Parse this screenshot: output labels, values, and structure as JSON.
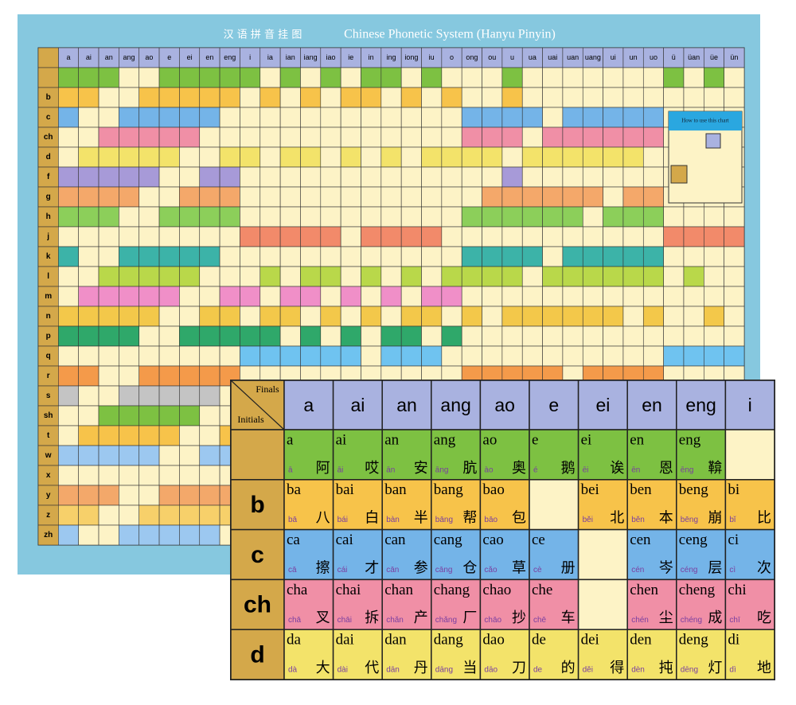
{
  "poster": {
    "title_cn": "汉 语 拼 音 挂 图",
    "title_en": "Chinese Phonetic System (Hanyu Pinyin)",
    "finals": [
      "a",
      "ai",
      "an",
      "ang",
      "ao",
      "e",
      "ei",
      "en",
      "eng",
      "i",
      "ia",
      "ian",
      "iang",
      "iao",
      "ie",
      "in",
      "ing",
      "iong",
      "iu",
      "o",
      "ong",
      "ou",
      "u",
      "ua",
      "uai",
      "uan",
      "uang",
      "ui",
      "un",
      "uo",
      "ü",
      "üan",
      "üe",
      "ün"
    ],
    "initials": [
      "b",
      "c",
      "ch",
      "d",
      "f",
      "g",
      "h",
      "j",
      "k",
      "l",
      "m",
      "n",
      "p",
      "q",
      "r",
      "s",
      "sh",
      "t",
      "w",
      "x",
      "y",
      "z",
      "zh"
    ],
    "guide_title": "How to use this chart"
  },
  "inset": {
    "corner_finals": "Finals",
    "corner_initials": "Initials",
    "finals": [
      "a",
      "ai",
      "an",
      "ang",
      "ao",
      "e",
      "ei",
      "en",
      "eng",
      "i"
    ],
    "rows": [
      {
        "cells": [
          {
            "syllable": "a",
            "tone": "ā",
            "hanzi": "阿"
          },
          {
            "syllable": "ai",
            "tone": "āi",
            "hanzi": "哎"
          },
          {
            "syllable": "an",
            "tone": "ān",
            "hanzi": "安"
          },
          {
            "syllable": "ang",
            "tone": "āng",
            "hanzi": "肮"
          },
          {
            "syllable": "ao",
            "tone": "ào",
            "hanzi": "奥"
          },
          {
            "syllable": "e",
            "tone": "é",
            "hanzi": "鹅"
          },
          {
            "syllable": "ei",
            "tone": "ēi",
            "hanzi": "诶"
          },
          {
            "syllable": "en",
            "tone": "ēn",
            "hanzi": "恩"
          },
          {
            "syllable": "eng",
            "tone": "ēng",
            "hanzi": "鞥"
          },
          null
        ]
      },
      {
        "initial": "b",
        "cells": [
          {
            "syllable": "ba",
            "tone": "bā",
            "hanzi": "八"
          },
          {
            "syllable": "bai",
            "tone": "bái",
            "hanzi": "白"
          },
          {
            "syllable": "ban",
            "tone": "bàn",
            "hanzi": "半"
          },
          {
            "syllable": "bang",
            "tone": "bāng",
            "hanzi": "帮"
          },
          {
            "syllable": "bao",
            "tone": "bāo",
            "hanzi": "包"
          },
          null,
          {
            "syllable": "bei",
            "tone": "běi",
            "hanzi": "北"
          },
          {
            "syllable": "ben",
            "tone": "běn",
            "hanzi": "本"
          },
          {
            "syllable": "beng",
            "tone": "bēng",
            "hanzi": "崩"
          },
          {
            "syllable": "bi",
            "tone": "bǐ",
            "hanzi": "比"
          }
        ]
      },
      {
        "initial": "c",
        "cells": [
          {
            "syllable": "ca",
            "tone": "cā",
            "hanzi": "擦"
          },
          {
            "syllable": "cai",
            "tone": "cái",
            "hanzi": "才"
          },
          {
            "syllable": "can",
            "tone": "cān",
            "hanzi": "参"
          },
          {
            "syllable": "cang",
            "tone": "cāng",
            "hanzi": "仓"
          },
          {
            "syllable": "cao",
            "tone": "cǎo",
            "hanzi": "草"
          },
          {
            "syllable": "ce",
            "tone": "cè",
            "hanzi": "册"
          },
          null,
          {
            "syllable": "cen",
            "tone": "cén",
            "hanzi": "岑"
          },
          {
            "syllable": "ceng",
            "tone": "céng",
            "hanzi": "层"
          },
          {
            "syllable": "ci",
            "tone": "cì",
            "hanzi": "次"
          }
        ]
      },
      {
        "initial": "ch",
        "cells": [
          {
            "syllable": "cha",
            "tone": "chā",
            "hanzi": "叉"
          },
          {
            "syllable": "chai",
            "tone": "chāi",
            "hanzi": "拆"
          },
          {
            "syllable": "chan",
            "tone": "chǎn",
            "hanzi": "产"
          },
          {
            "syllable": "chang",
            "tone": "chǎng",
            "hanzi": "厂"
          },
          {
            "syllable": "chao",
            "tone": "chāo",
            "hanzi": "抄"
          },
          {
            "syllable": "che",
            "tone": "chē",
            "hanzi": "车"
          },
          null,
          {
            "syllable": "chen",
            "tone": "chén",
            "hanzi": "尘"
          },
          {
            "syllable": "cheng",
            "tone": "chéng",
            "hanzi": "成"
          },
          {
            "syllable": "chi",
            "tone": "chī",
            "hanzi": "吃"
          }
        ]
      },
      {
        "initial": "d",
        "cells": [
          {
            "syllable": "da",
            "tone": "dà",
            "hanzi": "大"
          },
          {
            "syllable": "dai",
            "tone": "dài",
            "hanzi": "代"
          },
          {
            "syllable": "dan",
            "tone": "dān",
            "hanzi": "丹"
          },
          {
            "syllable": "dang",
            "tone": "dāng",
            "hanzi": "当"
          },
          {
            "syllable": "dao",
            "tone": "dāo",
            "hanzi": "刀"
          },
          {
            "syllable": "de",
            "tone": "de",
            "hanzi": "的"
          },
          {
            "syllable": "dei",
            "tone": "děi",
            "hanzi": "得"
          },
          {
            "syllable": "den",
            "tone": "dèn",
            "hanzi": "扽"
          },
          {
            "syllable": "deng",
            "tone": "dēng",
            "hanzi": "灯"
          },
          {
            "syllable": "di",
            "tone": "dì",
            "hanzi": "地"
          }
        ]
      }
    ]
  }
}
